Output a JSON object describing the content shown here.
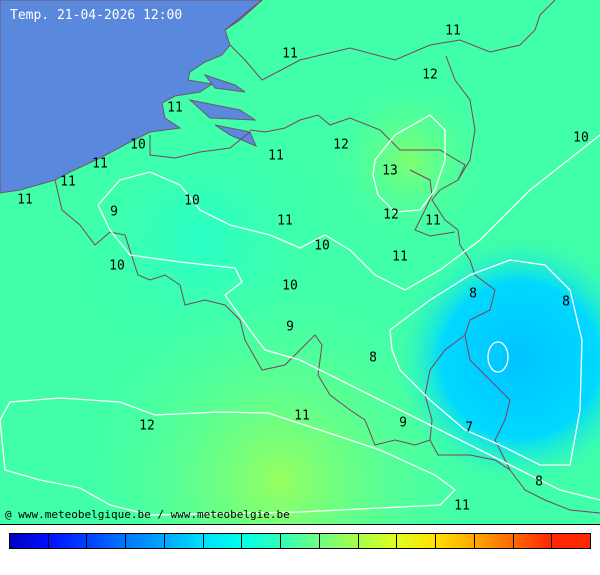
{
  "title": "Temp. 21-04-2026 12:00",
  "credit": "@ www.meteobelgique.be / www.meteobelgie.be",
  "colors": {
    "sea": "#5a88dc",
    "base": "#40ffa8",
    "cold": "#00ccff",
    "warm": "#98ff60",
    "contour": "#ffffff",
    "border": "#804060"
  },
  "colorbar": [
    "#0000c0",
    "#0010ff",
    "#0040ff",
    "#0078ff",
    "#00a8ff",
    "#00e0ff",
    "#00ffe8",
    "#30ffb8",
    "#70ff80",
    "#a8ff48",
    "#e0ff20",
    "#ffe000",
    "#ffa800",
    "#ff6800",
    "#ff2800"
  ],
  "labels": [
    "11",
    "11",
    "12",
    "10",
    "11",
    "10",
    "11",
    "12",
    "13",
    "11",
    "11",
    "11",
    "9",
    "10",
    "11",
    "12",
    "11",
    "10",
    "11",
    "10",
    "10",
    "8",
    "8",
    "9",
    "8",
    "11",
    "12",
    "9",
    "7",
    "8",
    "11"
  ]
}
